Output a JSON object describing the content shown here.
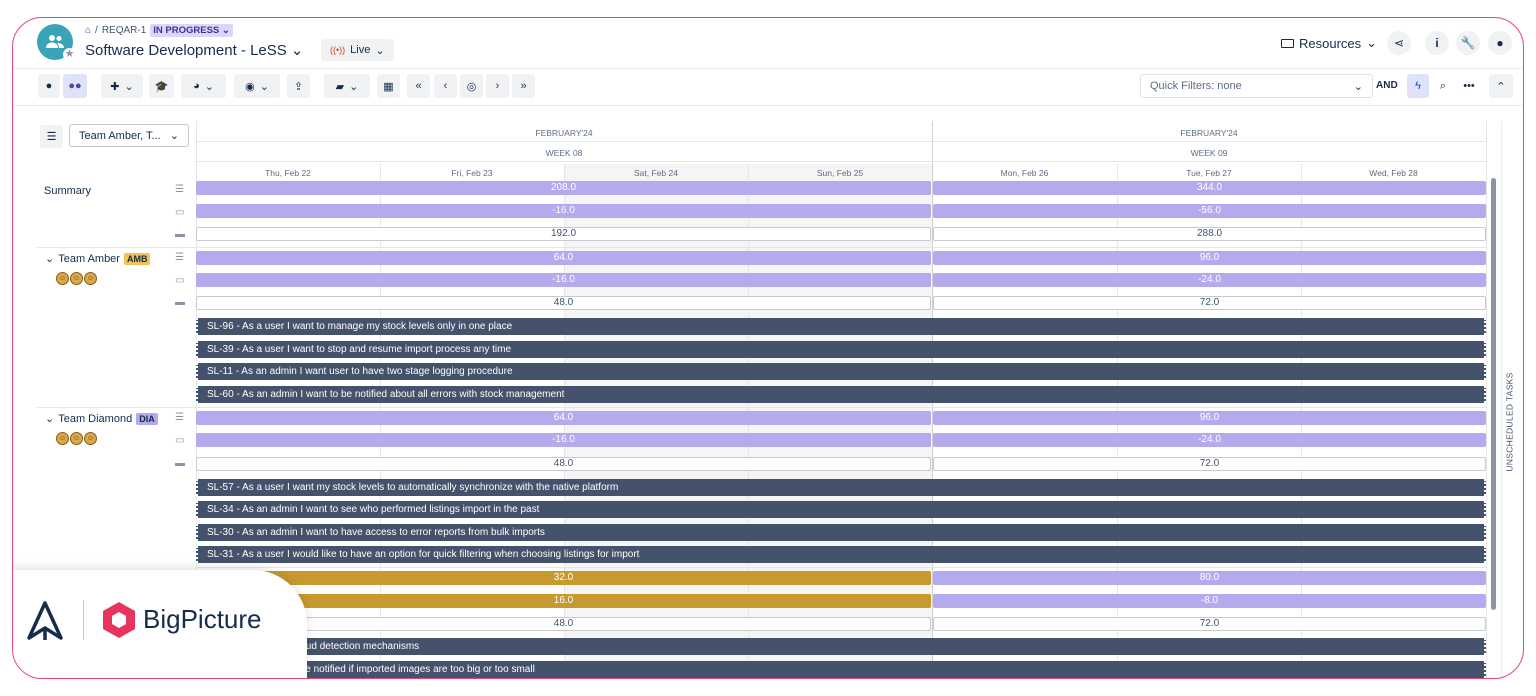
{
  "breadcrumb": {
    "project": "REQAR-1",
    "status": "IN PROGRESS"
  },
  "title": "Software Development - LeSS",
  "live_label": "Live",
  "header": {
    "resources_label": "Resources"
  },
  "quick_filters": {
    "value": "Quick Filters: none",
    "and_label": "AND"
  },
  "group_select": "Team Amber, T...",
  "timeline": {
    "months": [
      "FEBRUARY'24",
      "FEBRUARY'24"
    ],
    "weeks": [
      "WEEK 08",
      "WEEK 09"
    ],
    "days": [
      "Thu, Feb 22",
      "Fri, Feb 23",
      "Sat, Feb 24",
      "Sun, Feb 25",
      "Mon, Feb 26",
      "Tue, Feb 27",
      "Wed, Feb 28"
    ]
  },
  "summary": {
    "label": "Summary",
    "rows": [
      [
        "208.0",
        "344.0"
      ],
      [
        "-16.0",
        "-56.0"
      ],
      [
        "192.0",
        "288.0"
      ]
    ]
  },
  "teams": [
    {
      "name": "Team Amber",
      "tag": "AMB",
      "tag_color": "#f2c15a",
      "rows": [
        [
          "64.0",
          "96.0"
        ],
        [
          "-16.0",
          "-24.0"
        ],
        [
          "48.0",
          "72.0"
        ]
      ],
      "tasks": [
        "SL-96 - As a user I want to manage my stock levels only in one place",
        "SL-39 - As a user I want to stop and resume import process any time",
        "SL-11 - As an admin I want user to have two stage logging procedure",
        "SL-60 - As an admin I want to be notified about all errors with stock management"
      ]
    },
    {
      "name": "Team Diamond",
      "tag": "DIA",
      "tag_color": "#b4abef",
      "rows": [
        [
          "64.0",
          "96.0"
        ],
        [
          "-16.0",
          "-24.0"
        ],
        [
          "48.0",
          "72.0"
        ]
      ],
      "tasks": [
        "SL-57 - As a user I want my stock levels to automatically synchronize with the native platform",
        "SL-34 - As an admin I want to see who performed listings import in the past",
        "SL-30 - As an admin I want to have access to error reports from bulk imports",
        "SL-31 - As a user I would like to have an option for quick filtering when choosing listings for import"
      ]
    },
    {
      "rows": [
        [
          "32.0",
          "80.0"
        ],
        [
          "16.0",
          "-8.0"
        ],
        [
          "48.0",
          "72.0"
        ]
      ],
      "tasks": [
        "nt fraud detection mechanisms",
        "t to be notified if imported images are too big or too small"
      ]
    }
  ],
  "unscheduled_label": "UNSCHEDULED TASKS",
  "brand": {
    "name": "BigPicture"
  },
  "colors": {
    "frame": "#e8457a",
    "capacity": "#b4abef",
    "over": "#c69a2f",
    "task": "#44536b"
  }
}
